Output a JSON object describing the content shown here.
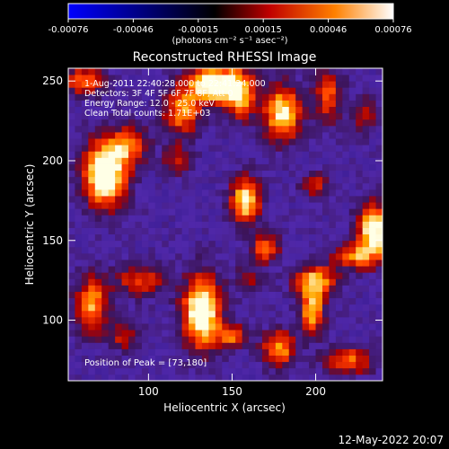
{
  "chart_data": {
    "type": "heatmap",
    "title": "Reconstructed RHESSI Image",
    "xlabel": "Heliocentric X (arcsec)",
    "ylabel": "Heliocentric Y (arcsec)",
    "xlim": [
      52,
      240
    ],
    "ylim": [
      62,
      258
    ],
    "x_ticks": [
      100,
      150,
      200
    ],
    "y_ticks": [
      100,
      150,
      200,
      250
    ],
    "colorbar": {
      "min": -0.00076,
      "max": 0.00076,
      "ticks": [
        "-0.00076",
        "-0.00046",
        "-0.00015",
        "0.00015",
        "0.00046",
        "0.00076"
      ],
      "units_label": "(photons cm⁻² s⁻¹ asec⁻²)",
      "colormap": [
        "#0000ff",
        "#000000",
        "#c00000",
        "#ff8000",
        "#ffffff"
      ]
    },
    "annotations": [
      "1-Aug-2011 22:40:28.000 to 22:41:24.000",
      "Detectors: 3F 4F 5F 6F 7F 8F, Att 0",
      "Energy Range: 12.0 - 25.0 keV",
      "Clean     Total counts: 1.71E+03"
    ],
    "peak_label": "Position of Peak = [73,180]",
    "peak": [
      73,
      180
    ],
    "blobs": [
      {
        "x": 62,
        "y": 250,
        "sx": 8,
        "sy": 6,
        "a": 0.55
      },
      {
        "x": 74,
        "y": 192,
        "sx": 9,
        "sy": 14,
        "a": 0.95
      },
      {
        "x": 88,
        "y": 210,
        "sx": 8,
        "sy": 8,
        "a": 0.5
      },
      {
        "x": 66,
        "y": 110,
        "sx": 7,
        "sy": 12,
        "a": 0.6
      },
      {
        "x": 95,
        "y": 125,
        "sx": 10,
        "sy": 7,
        "a": 0.45
      },
      {
        "x": 85,
        "y": 90,
        "sx": 7,
        "sy": 6,
        "a": 0.35
      },
      {
        "x": 120,
        "y": 230,
        "sx": 8,
        "sy": 10,
        "a": 0.55
      },
      {
        "x": 140,
        "y": 248,
        "sx": 12,
        "sy": 8,
        "a": 0.9
      },
      {
        "x": 118,
        "y": 200,
        "sx": 6,
        "sy": 6,
        "a": 0.4
      },
      {
        "x": 155,
        "y": 240,
        "sx": 6,
        "sy": 10,
        "a": 0.55
      },
      {
        "x": 158,
        "y": 175,
        "sx": 6,
        "sy": 10,
        "a": 0.75
      },
      {
        "x": 132,
        "y": 105,
        "sx": 8,
        "sy": 16,
        "a": 0.9
      },
      {
        "x": 150,
        "y": 90,
        "sx": 6,
        "sy": 5,
        "a": 0.5
      },
      {
        "x": 170,
        "y": 145,
        "sx": 6,
        "sy": 6,
        "a": 0.55
      },
      {
        "x": 180,
        "y": 230,
        "sx": 8,
        "sy": 12,
        "a": 0.75
      },
      {
        "x": 208,
        "y": 240,
        "sx": 6,
        "sy": 12,
        "a": 0.45
      },
      {
        "x": 230,
        "y": 230,
        "sx": 5,
        "sy": 8,
        "a": 0.35
      },
      {
        "x": 235,
        "y": 155,
        "sx": 7,
        "sy": 12,
        "a": 0.85
      },
      {
        "x": 222,
        "y": 140,
        "sx": 8,
        "sy": 5,
        "a": 0.5
      },
      {
        "x": 200,
        "y": 125,
        "sx": 9,
        "sy": 7,
        "a": 0.6
      },
      {
        "x": 198,
        "y": 106,
        "sx": 5,
        "sy": 10,
        "a": 0.65
      },
      {
        "x": 178,
        "y": 82,
        "sx": 7,
        "sy": 8,
        "a": 0.6
      },
      {
        "x": 220,
        "y": 75,
        "sx": 10,
        "sy": 6,
        "a": 0.5
      },
      {
        "x": 200,
        "y": 185,
        "sx": 6,
        "sy": 6,
        "a": 0.35
      },
      {
        "x": 160,
        "y": 125,
        "sx": 6,
        "sy": 6,
        "a": 0.3
      }
    ]
  },
  "footer": {
    "timestamp": "12-May-2022 20:07"
  }
}
